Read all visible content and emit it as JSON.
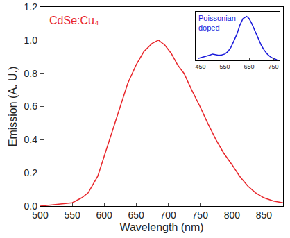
{
  "chart_data": [
    {
      "type": "line",
      "annotation": "CdSe:Cu₄",
      "x_label": "Wavelength (nm)",
      "y_label": "Emission (A. U.)",
      "x": [
        500,
        525,
        550,
        565,
        575,
        590,
        600,
        612,
        625,
        637,
        650,
        662,
        675,
        685,
        695,
        705,
        715,
        725,
        737,
        750,
        762,
        775,
        787,
        800,
        812,
        825,
        837,
        850,
        865,
        880
      ],
      "values": [
        0.0,
        0.01,
        0.02,
        0.05,
        0.08,
        0.18,
        0.3,
        0.45,
        0.6,
        0.74,
        0.85,
        0.93,
        0.98,
        1.0,
        0.97,
        0.92,
        0.85,
        0.8,
        0.7,
        0.6,
        0.5,
        0.4,
        0.32,
        0.25,
        0.18,
        0.12,
        0.08,
        0.05,
        0.03,
        0.02
      ],
      "color": "#e8262b",
      "xlim": [
        500,
        880
      ],
      "xticks": [
        500,
        550,
        600,
        650,
        700,
        750,
        800,
        850
      ],
      "ylim": [
        0,
        1.2
      ],
      "yticks": [
        {
          "value": 0,
          "label": "0.0"
        },
        0.2,
        0.4,
        0.6,
        0.8,
        {
          "value": 1,
          "label": "1.0"
        },
        1.2
      ],
      "grid": false
    },
    {
      "type": "line",
      "annotation": "Poissonian doped",
      "x": [
        440,
        460,
        475,
        490,
        500,
        512,
        525,
        537,
        550,
        562,
        575,
        587,
        600,
        612,
        625,
        640,
        650,
        660,
        670,
        680,
        690,
        700,
        712,
        725,
        737,
        750,
        765
      ],
      "values": [
        0.05,
        0.08,
        0.1,
        0.13,
        0.15,
        0.14,
        0.12,
        0.13,
        0.15,
        0.2,
        0.3,
        0.44,
        0.6,
        0.8,
        0.95,
        1.0,
        0.95,
        0.85,
        0.73,
        0.6,
        0.47,
        0.35,
        0.24,
        0.15,
        0.09,
        0.05,
        0.02
      ],
      "color": "#1a1adb",
      "xlim": [
        430,
        775
      ],
      "xticks": [
        450,
        550,
        650,
        750
      ],
      "ylim": [
        0,
        1.1
      ],
      "tick_labels": "x",
      "grid": false
    }
  ]
}
